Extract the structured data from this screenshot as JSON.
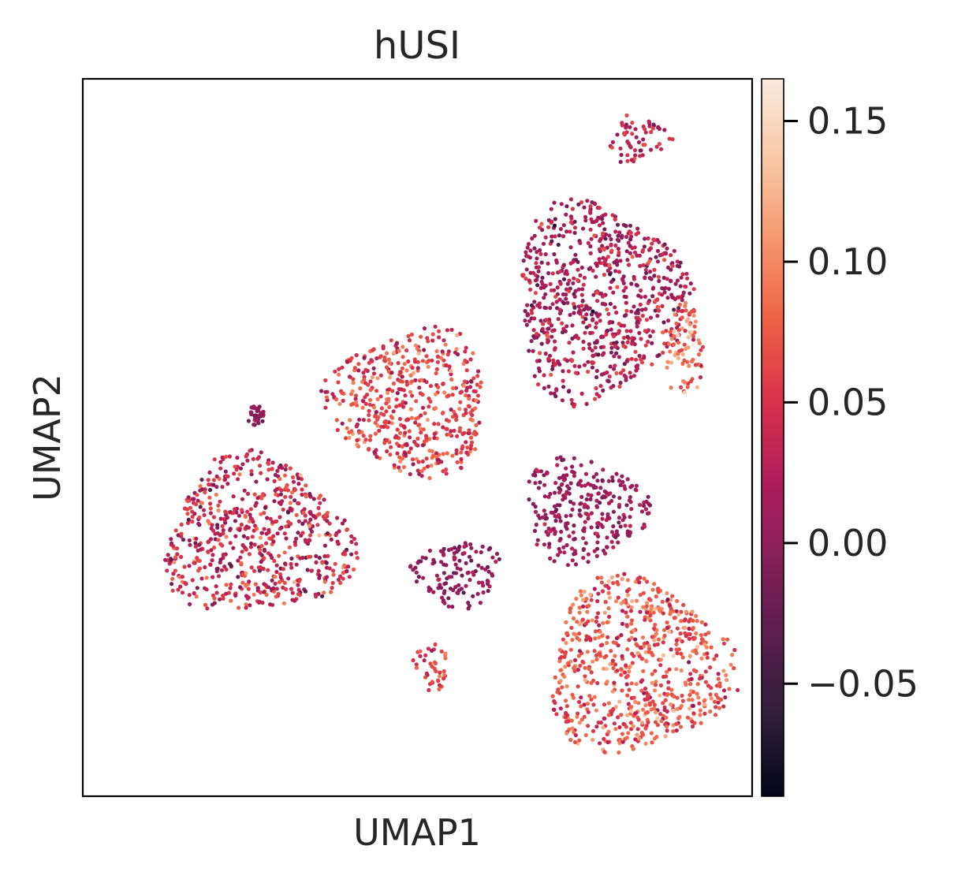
{
  "chart_data": {
    "type": "scatter",
    "title": "hUSI",
    "xlabel": "UMAP1",
    "ylabel": "UMAP2",
    "x_ticks_shown": false,
    "y_ticks_shown": false,
    "grid": false,
    "color_scale": {
      "name": "rocket",
      "vmin": -0.09,
      "vmax": 0.165,
      "ticks": [
        -0.05,
        0.0,
        0.05,
        0.1,
        0.15
      ],
      "tick_labels": [
        "−0.05",
        "0.00",
        "0.05",
        "0.10",
        "0.15"
      ],
      "stops": [
        "#03051a",
        "#2e1e3c",
        "#5a1e4f",
        "#861e5b",
        "#b21d59",
        "#d9334a",
        "#ef6345",
        "#f6986e",
        "#f9c8a7",
        "#faebdd"
      ]
    },
    "clusters": [
      {
        "name": "top-right-small",
        "cx": 0.83,
        "cy": 0.915,
        "rx": 0.05,
        "ry": 0.035,
        "mean": 0.03,
        "spread": 0.025
      },
      {
        "name": "upper-right-large",
        "cx": 0.77,
        "cy": 0.69,
        "rx": 0.14,
        "ry": 0.15,
        "mean": 0.02,
        "spread": 0.025
      },
      {
        "name": "upper-right-edge",
        "cx": 0.9,
        "cy": 0.62,
        "rx": 0.03,
        "ry": 0.07,
        "mean": 0.09,
        "spread": 0.03
      },
      {
        "name": "middle-left",
        "cx": 0.49,
        "cy": 0.55,
        "rx": 0.13,
        "ry": 0.11,
        "mean": 0.06,
        "spread": 0.025
      },
      {
        "name": "center-right",
        "cx": 0.75,
        "cy": 0.4,
        "rx": 0.1,
        "ry": 0.08,
        "mean": 0.01,
        "spread": 0.015
      },
      {
        "name": "left-large",
        "cx": 0.26,
        "cy": 0.36,
        "rx": 0.15,
        "ry": 0.12,
        "mean": 0.04,
        "spread": 0.03
      },
      {
        "name": "left-small",
        "cx": 0.56,
        "cy": 0.31,
        "rx": 0.07,
        "ry": 0.05,
        "mean": 0.0,
        "spread": 0.015
      },
      {
        "name": "bottom-small",
        "cx": 0.52,
        "cy": 0.18,
        "rx": 0.03,
        "ry": 0.035,
        "mean": 0.06,
        "spread": 0.02
      },
      {
        "name": "bottom-right-large",
        "cx": 0.83,
        "cy": 0.18,
        "rx": 0.15,
        "ry": 0.13,
        "mean": 0.07,
        "spread": 0.025
      },
      {
        "name": "tiny-left",
        "cx": 0.26,
        "cy": 0.53,
        "rx": 0.015,
        "ry": 0.015,
        "mean": 0.0,
        "spread": 0.01
      }
    ]
  }
}
